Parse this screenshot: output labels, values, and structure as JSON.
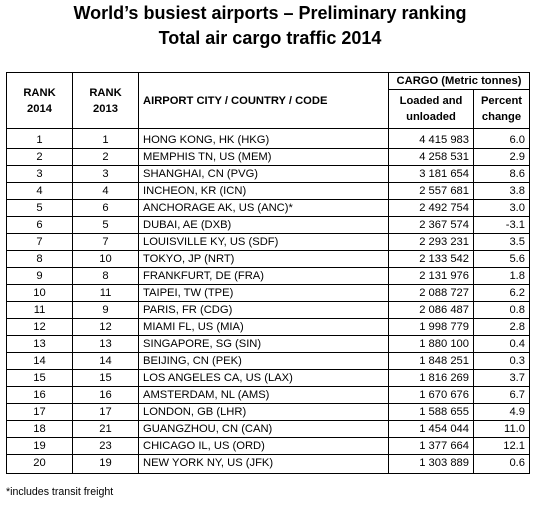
{
  "title_line1": "World’s busiest airports – Preliminary ranking",
  "title_line2": "Total air cargo traffic 2014",
  "headers": {
    "rank2014": "RANK 2014",
    "rank2013": "RANK 2013",
    "airport": "AIRPORT CITY / COUNTRY / CODE",
    "cargo_group": "CARGO (Metric tonnes)",
    "loaded": "Loaded and unloaded",
    "percent": "Percent change"
  },
  "rows": [
    {
      "rank2014": "1",
      "rank2013": "1",
      "airport": "HONG KONG, HK (HKG)",
      "cargo": "4 415 983",
      "pct": "6.0"
    },
    {
      "rank2014": "2",
      "rank2013": "2",
      "airport": "MEMPHIS TN, US (MEM)",
      "cargo": "4 258 531",
      "pct": "2.9"
    },
    {
      "rank2014": "3",
      "rank2013": "3",
      "airport": "SHANGHAI, CN (PVG)",
      "cargo": "3 181 654",
      "pct": "8.6"
    },
    {
      "rank2014": "4",
      "rank2013": "4",
      "airport": "INCHEON, KR (ICN)",
      "cargo": "2 557 681",
      "pct": "3.8"
    },
    {
      "rank2014": "5",
      "rank2013": "6",
      "airport": "ANCHORAGE AK, US (ANC)*",
      "cargo": "2 492 754",
      "pct": "3.0"
    },
    {
      "rank2014": "6",
      "rank2013": "5",
      "airport": "DUBAI, AE (DXB)",
      "cargo": "2 367 574",
      "pct": "-3.1"
    },
    {
      "rank2014": "7",
      "rank2013": "7",
      "airport": "LOUISVILLE KY, US (SDF)",
      "cargo": "2 293 231",
      "pct": "3.5"
    },
    {
      "rank2014": "8",
      "rank2013": "10",
      "airport": "TOKYO, JP (NRT)",
      "cargo": "2 133 542",
      "pct": "5.6"
    },
    {
      "rank2014": "9",
      "rank2013": "8",
      "airport": "FRANKFURT, DE (FRA)",
      "cargo": "2 131 976",
      "pct": "1.8"
    },
    {
      "rank2014": "10",
      "rank2013": "11",
      "airport": "TAIPEI, TW (TPE)",
      "cargo": "2 088 727",
      "pct": "6.2"
    },
    {
      "rank2014": "11",
      "rank2013": "9",
      "airport": "PARIS, FR (CDG)",
      "cargo": "2 086 487",
      "pct": "0.8"
    },
    {
      "rank2014": "12",
      "rank2013": "12",
      "airport": "MIAMI FL, US (MIA)",
      "cargo": "1 998 779",
      "pct": "2.8"
    },
    {
      "rank2014": "13",
      "rank2013": "13",
      "airport": "SINGAPORE, SG (SIN)",
      "cargo": "1 880 100",
      "pct": "0.4"
    },
    {
      "rank2014": "14",
      "rank2013": "14",
      "airport": "BEIJING, CN (PEK)",
      "cargo": "1 848 251",
      "pct": "0.3"
    },
    {
      "rank2014": "15",
      "rank2013": "15",
      "airport": "LOS ANGELES CA, US (LAX)",
      "cargo": "1 816 269",
      "pct": "3.7"
    },
    {
      "rank2014": "16",
      "rank2013": "16",
      "airport": "AMSTERDAM, NL (AMS)",
      "cargo": "1 670 676",
      "pct": "6.7"
    },
    {
      "rank2014": "17",
      "rank2013": "17",
      "airport": "LONDON, GB (LHR)",
      "cargo": "1 588 655",
      "pct": "4.9"
    },
    {
      "rank2014": "18",
      "rank2013": "21",
      "airport": "GUANGZHOU, CN (CAN)",
      "cargo": "1 454 044",
      "pct": "11.0"
    },
    {
      "rank2014": "19",
      "rank2013": "23",
      "airport": "CHICAGO IL, US (ORD)",
      "cargo": "1 377 664",
      "pct": "12.1"
    },
    {
      "rank2014": "20",
      "rank2013": "19",
      "airport": "NEW YORK NY, US (JFK)",
      "cargo": "1 303 889",
      "pct": "0.6"
    }
  ],
  "footnote": "*includes transit freight"
}
